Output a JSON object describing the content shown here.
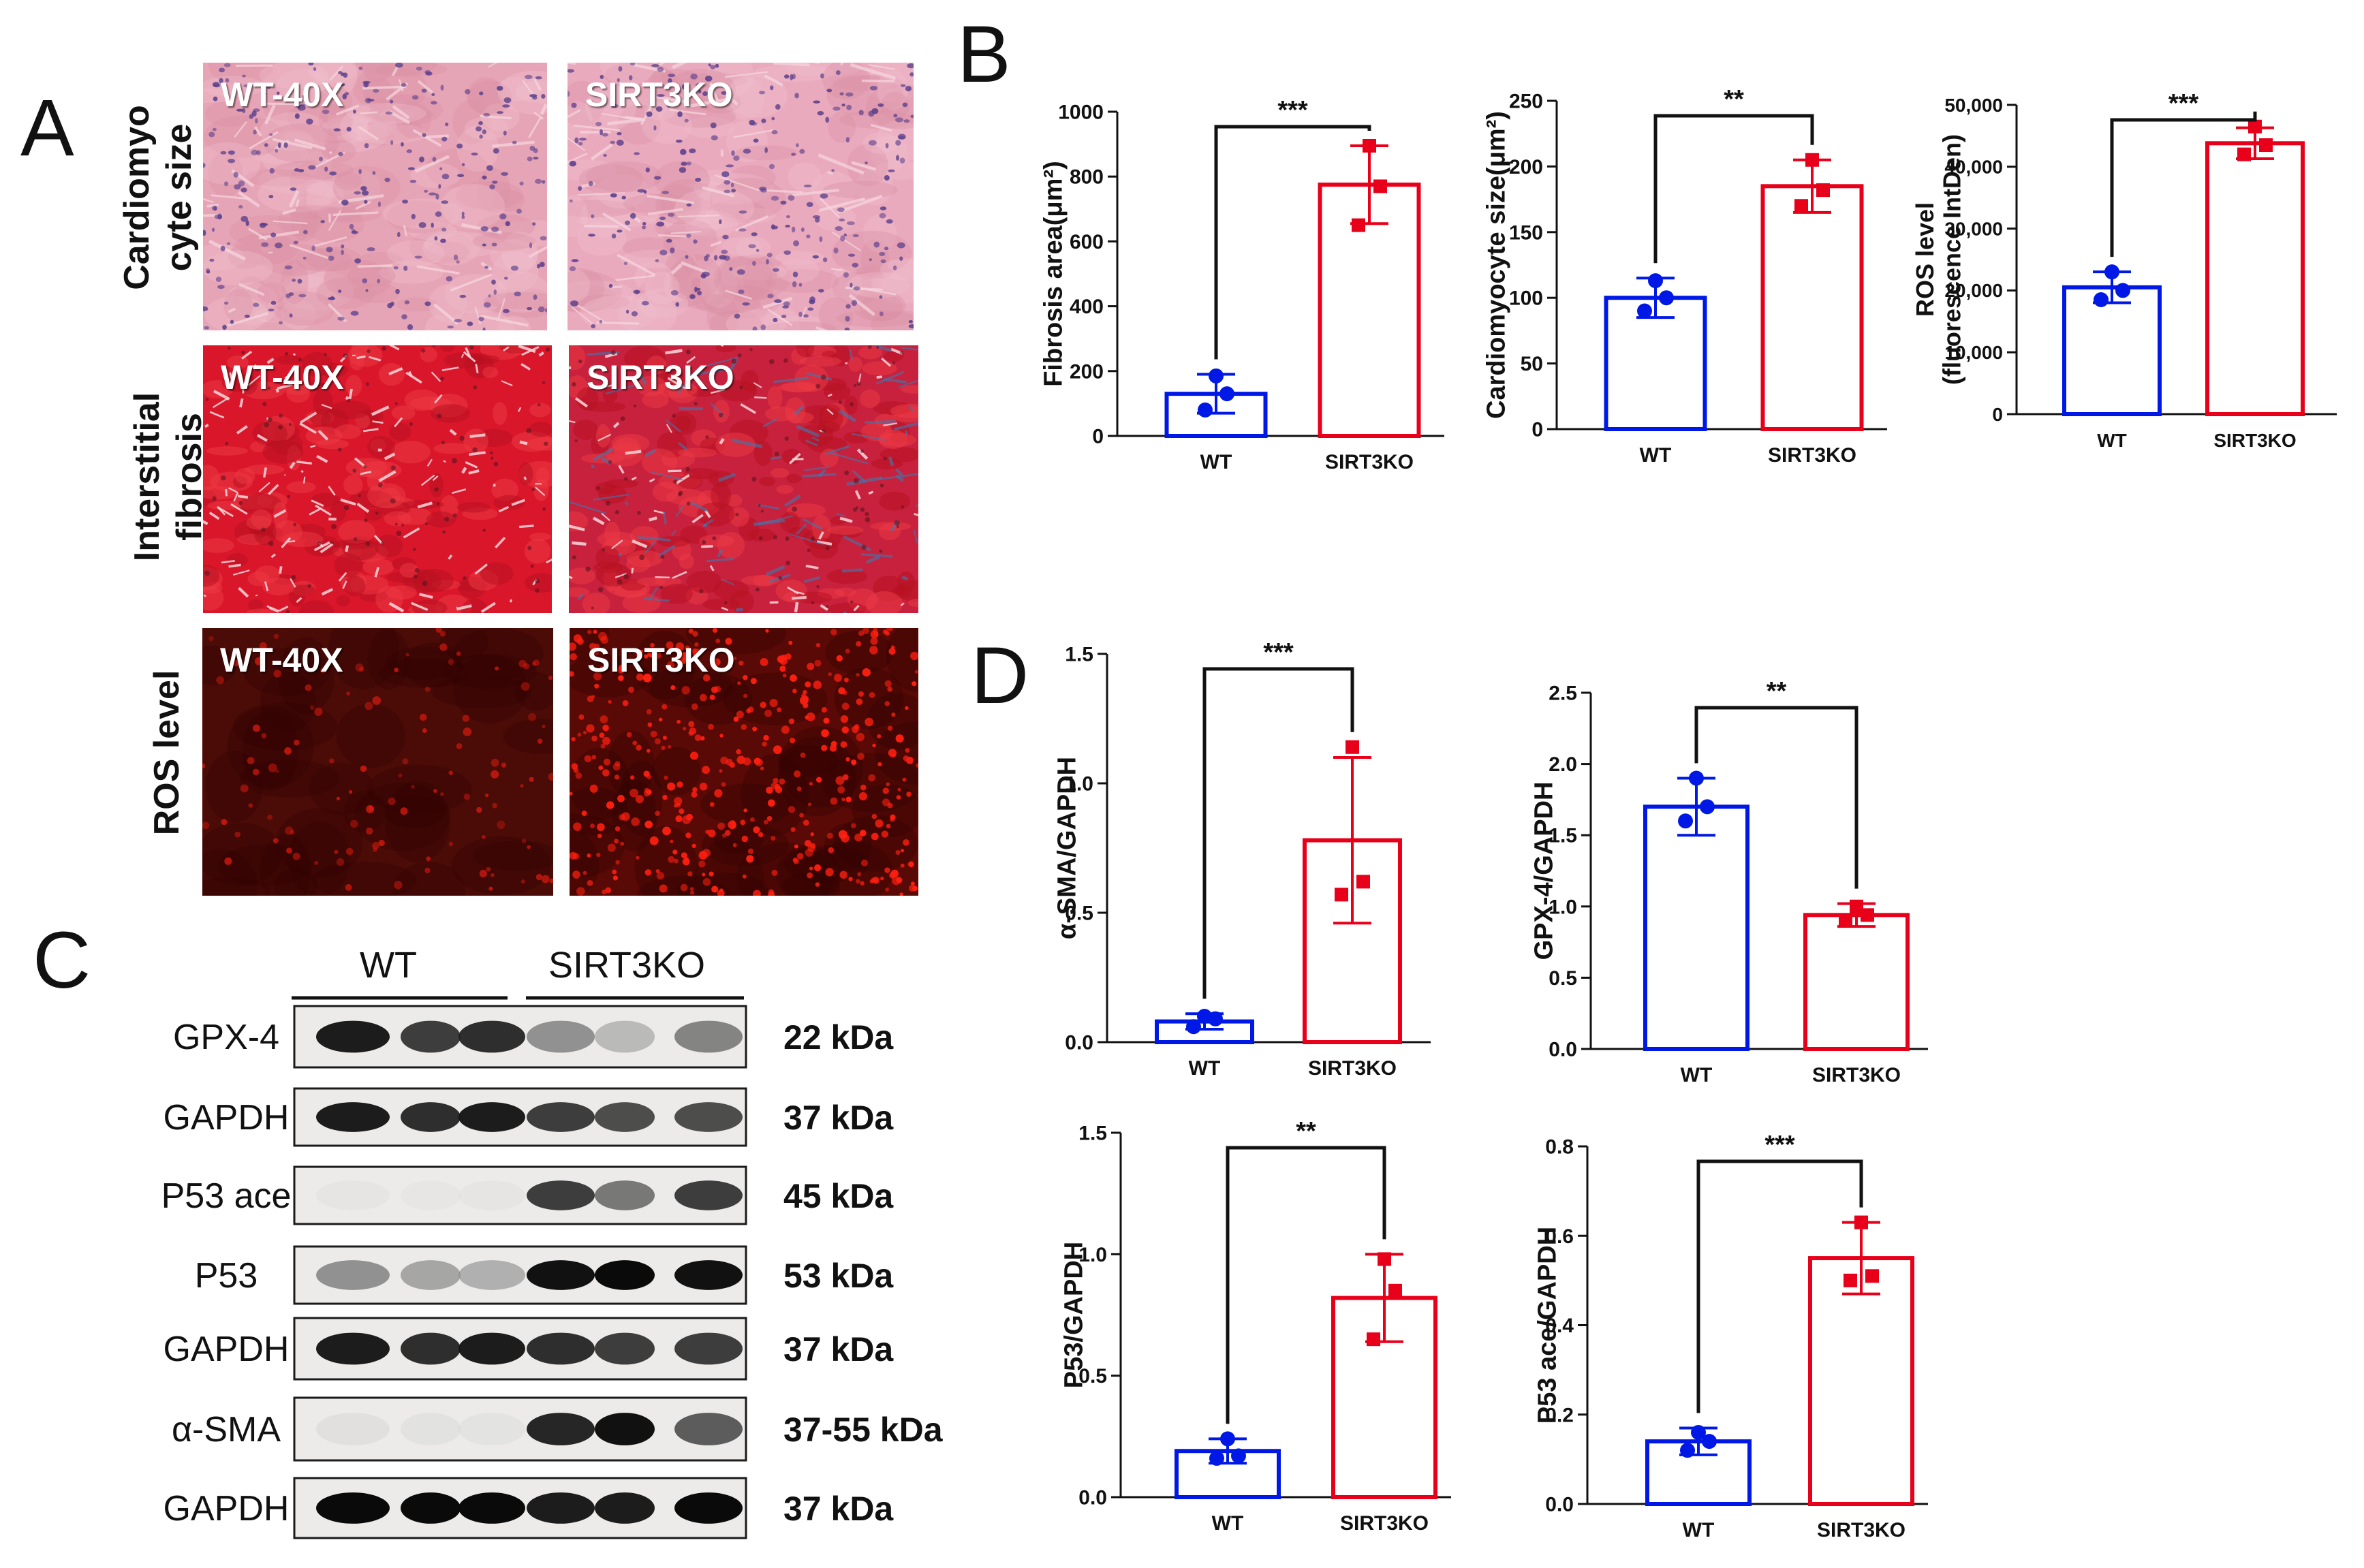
{
  "colors": {
    "wt": "#0018e6",
    "ko": "#e8001a",
    "he_base": "#e7a2b6",
    "trichrome_base": "#d81f2c",
    "ros_base": "#4a0a06",
    "ros_dot": "#ff1f10",
    "text": "#111111"
  },
  "panel_letters": {
    "a": "A",
    "b": "B",
    "c": "C",
    "d": "D"
  },
  "panel_a": {
    "row_labels": [
      {
        "line1": "Cardiomyo",
        "line2": "cyte size"
      },
      {
        "line1": "Interstitial",
        "line2": "fibrosis"
      },
      {
        "line1": "ROS level",
        "line2": ""
      }
    ],
    "images": [
      {
        "label": "WT-40X",
        "stain": "he-wt"
      },
      {
        "label": "SIRT3KO",
        "stain": "he-ko"
      },
      {
        "label": "WT-40X",
        "stain": "trichrome-wt"
      },
      {
        "label": "SIRT3KO",
        "stain": "trichrome-ko"
      },
      {
        "label": "WT-40X",
        "stain": "ros-wt"
      },
      {
        "label": "SIRT3KO",
        "stain": "ros-ko"
      }
    ]
  },
  "panel_c": {
    "group_labels": {
      "wt": "WT",
      "ko": "SIRT3KO"
    },
    "blots": [
      {
        "protein": "GPX-4",
        "size": "22 kDa",
        "intensities": [
          0.95,
          0.85,
          0.9,
          0.55,
          0.35,
          0.6
        ]
      },
      {
        "protein": "GAPDH",
        "size": "37 kDa",
        "intensities": [
          0.95,
          0.9,
          0.95,
          0.85,
          0.8,
          0.8
        ]
      },
      {
        "protein": "P53 ace",
        "size": "45 kDa",
        "intensities": [
          0.03,
          0.02,
          0.03,
          0.85,
          0.65,
          0.85
        ]
      },
      {
        "protein": "P53",
        "size": "53 kDa",
        "intensities": [
          0.55,
          0.45,
          0.4,
          0.98,
          1.0,
          0.98
        ]
      },
      {
        "protein": "GAPDH",
        "size": "37 kDa",
        "intensities": [
          0.95,
          0.9,
          0.95,
          0.9,
          0.85,
          0.85
        ]
      },
      {
        "protein": "α-SMA",
        "size": "37-55 kDa",
        "intensities": [
          0.08,
          0.06,
          0.05,
          0.92,
          0.98,
          0.75
        ]
      },
      {
        "protein": "GAPDH",
        "size": "37 kDa",
        "intensities": [
          1.0,
          1.0,
          1.0,
          0.95,
          0.95,
          1.0
        ]
      }
    ]
  },
  "chart_data": [
    {
      "panel": "B",
      "type": "bar",
      "ylabel": "Fibrosis area(μm²)",
      "ylabel_lines": [
        "Fibrosis area(μm²)"
      ],
      "categories": [
        "WT",
        "SIRT3KO"
      ],
      "values": [
        130,
        775
      ],
      "errors": [
        60,
        120
      ],
      "points": [
        [
          185,
          80,
          130
        ],
        [
          895,
          650,
          770
        ]
      ],
      "ylim": [
        0,
        1000
      ],
      "yticks": [
        0,
        200,
        400,
        600,
        800,
        1000
      ],
      "yticklabels": [
        "0",
        "200",
        "400",
        "600",
        "800",
        "1000"
      ],
      "significance": "***"
    },
    {
      "panel": "B",
      "type": "bar",
      "ylabel": "Cardiomyocyte size(μm²)",
      "ylabel_lines": [
        "Cardiomyocyte size(μm²)"
      ],
      "categories": [
        "WT",
        "SIRT3KO"
      ],
      "values": [
        100,
        185
      ],
      "errors": [
        15,
        20
      ],
      "points": [
        [
          113,
          90,
          100
        ],
        [
          205,
          170,
          182
        ]
      ],
      "ylim": [
        0,
        250
      ],
      "yticks": [
        0,
        50,
        100,
        150,
        200,
        250
      ],
      "yticklabels": [
        "0",
        "50",
        "100",
        "150",
        "200",
        "250"
      ],
      "significance": "**"
    },
    {
      "panel": "B",
      "type": "bar",
      "ylabel": "ROS level (fluorescence IntDen)",
      "ylabel_lines": [
        "ROS level",
        "(fluorescence IntDen)"
      ],
      "categories": [
        "WT",
        "SIRT3KO"
      ],
      "values": [
        20500,
        43800
      ],
      "errors": [
        2500,
        2500
      ],
      "points": [
        [
          23000,
          18500,
          20000
        ],
        [
          46500,
          42000,
          43500
        ]
      ],
      "ylim": [
        0,
        50000
      ],
      "yticks": [
        0,
        10000,
        20000,
        30000,
        40000,
        50000
      ],
      "yticklabels": [
        "0",
        "10,000",
        "20,000",
        "30,000",
        "40,000",
        "50,000"
      ],
      "significance": "***"
    },
    {
      "panel": "D",
      "type": "bar",
      "ylabel": "α-SMA/GAPDH",
      "ylabel_lines": [
        "α-SMA/GAPDH"
      ],
      "categories": [
        "WT",
        "SIRT3KO"
      ],
      "values": [
        0.08,
        0.78
      ],
      "errors": [
        0.03,
        0.32
      ],
      "points": [
        [
          0.1,
          0.06,
          0.09
        ],
        [
          1.14,
          0.57,
          0.62
        ]
      ],
      "ylim": [
        0,
        1.5
      ],
      "yticks": [
        0,
        0.5,
        1.0,
        1.5
      ],
      "yticklabels": [
        "0.0",
        "0.5",
        "1.0",
        "1.5"
      ],
      "significance": "***"
    },
    {
      "panel": "D",
      "type": "bar",
      "ylabel": "GPX-4/GAPDH",
      "ylabel_lines": [
        "GPX-4/GAPDH"
      ],
      "categories": [
        "WT",
        "SIRT3KO"
      ],
      "values": [
        1.7,
        0.94
      ],
      "errors": [
        0.2,
        0.08
      ],
      "points": [
        [
          1.9,
          1.6,
          1.7
        ],
        [
          1.0,
          0.9,
          0.94
        ]
      ],
      "ylim": [
        0,
        2.5
      ],
      "yticks": [
        0,
        0.5,
        1.0,
        1.5,
        2.0,
        2.5
      ],
      "yticklabels": [
        "0.0",
        "0.5",
        "1.0",
        "1.5",
        "2.0",
        "2.5"
      ],
      "significance": "**"
    },
    {
      "panel": "D",
      "type": "bar",
      "ylabel": "P53/GAPDH",
      "ylabel_lines": [
        "P53/GAPDH"
      ],
      "categories": [
        "WT",
        "SIRT3KO"
      ],
      "values": [
        0.19,
        0.82
      ],
      "errors": [
        0.05,
        0.18
      ],
      "points": [
        [
          0.24,
          0.16,
          0.17
        ],
        [
          0.98,
          0.65,
          0.85
        ]
      ],
      "ylim": [
        0,
        1.5
      ],
      "yticks": [
        0,
        0.5,
        1.0,
        1.5
      ],
      "yticklabels": [
        "0.0",
        "0.5",
        "1.0",
        "1.5"
      ],
      "significance": "**"
    },
    {
      "panel": "D",
      "type": "bar",
      "ylabel": "P53 ace/GAPDH",
      "ylabel_lines": [
        "P53 ace/GAPDH"
      ],
      "categories": [
        "WT",
        "SIRT3KO"
      ],
      "values": [
        0.14,
        0.55
      ],
      "errors": [
        0.03,
        0.08
      ],
      "points": [
        [
          0.16,
          0.12,
          0.14
        ],
        [
          0.63,
          0.5,
          0.51
        ]
      ],
      "ylim": [
        0,
        0.8
      ],
      "yticks": [
        0,
        0.2,
        0.4,
        0.6,
        0.8
      ],
      "yticklabels": [
        "0.0",
        "0.2",
        "0.4",
        "0.6",
        "0.8"
      ],
      "significance": "***"
    }
  ]
}
